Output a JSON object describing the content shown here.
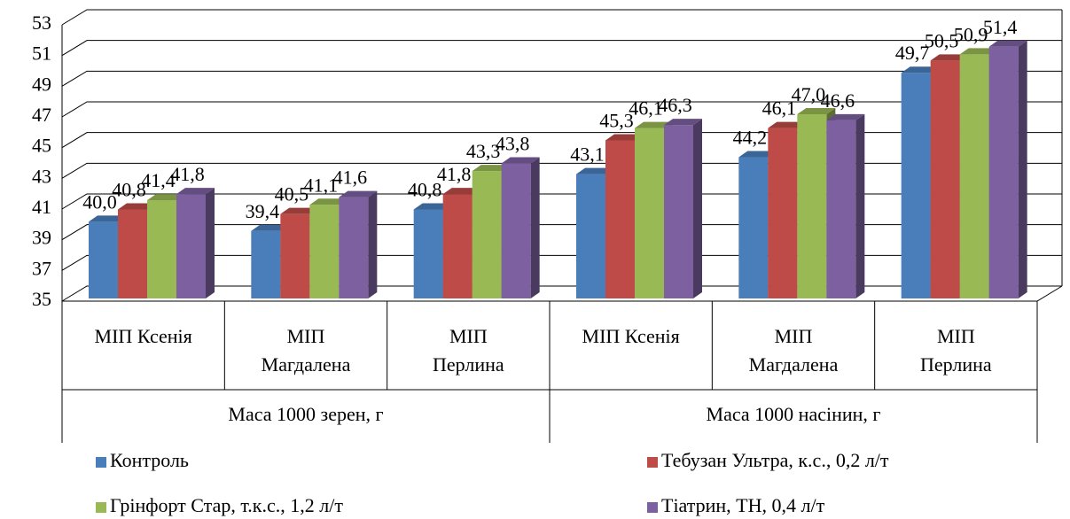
{
  "chart_data": {
    "type": "bar3d",
    "categories": [
      "МІП Ксенія",
      "МІП\nМагдалена",
      "МІП\nПерлина",
      "МІП Ксенія",
      "МІП\nМагдалена",
      "МІП\nПерлина"
    ],
    "category_groups": [
      "Маса 1000 зерен, г",
      "Маса 1000 насінин, г"
    ],
    "ylim": [
      35,
      53
    ],
    "yticks": [
      35,
      37,
      39,
      41,
      43,
      45,
      47,
      49,
      51,
      53
    ],
    "grid": true,
    "series": [
      {
        "name": "Контроль",
        "color": "#4a7ebb",
        "values": [
          40.0,
          39.4,
          40.8,
          43.1,
          44.2,
          49.7
        ],
        "value_labels": [
          "40,0",
          "39,4",
          "40,8",
          "43,1",
          "44,2",
          "49,7"
        ]
      },
      {
        "name": "Тебузан Ультра, к.с., 0,2 л/т",
        "color": "#be4b48",
        "values": [
          40.8,
          40.5,
          41.8,
          45.3,
          46.1,
          50.5
        ],
        "value_labels": [
          "40,8",
          "40,5",
          "41,8",
          "45,3",
          "46,1",
          "50,5"
        ]
      },
      {
        "name": "Грінфорт Стар, т.к.с., 1,2 л/т",
        "color": "#98b954",
        "values": [
          41.4,
          41.1,
          43.3,
          46.1,
          47.0,
          50.9
        ],
        "value_labels": [
          "41,4",
          "41,1",
          "43,3",
          "46,1",
          "47,0",
          "50,9"
        ]
      },
      {
        "name": "Тіатрин, ТН, 0,4 л/т",
        "color": "#7d60a0",
        "values": [
          41.8,
          41.6,
          43.8,
          46.3,
          46.6,
          51.4
        ],
        "value_labels": [
          "41,8",
          "41,6",
          "43,8",
          "46,3",
          "46,6",
          "51,4"
        ]
      }
    ]
  }
}
